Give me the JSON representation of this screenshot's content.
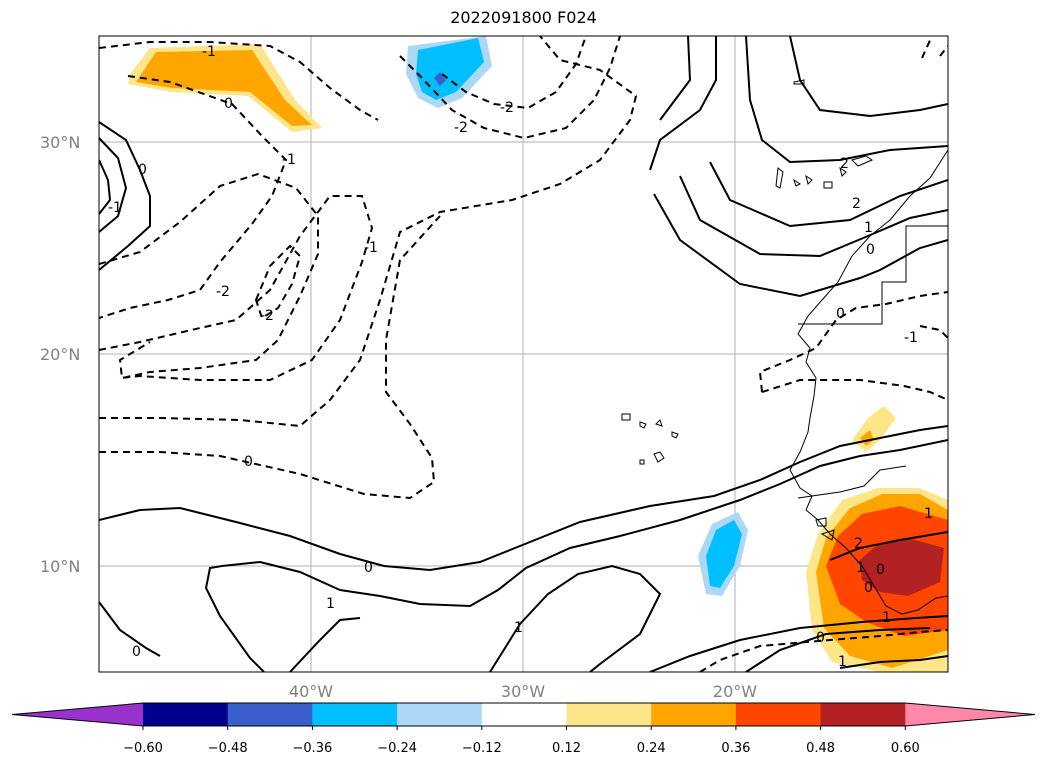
{
  "title": "2022091800 F024",
  "lat_labels": [
    "30°N",
    "20°N",
    "10°N"
  ],
  "lon_labels": [
    "40°W",
    "30°W",
    "20°W"
  ],
  "colorbar": {
    "ticks": [
      "−0.60",
      "−0.48",
      "−0.36",
      "−0.24",
      "−0.12",
      "0.12",
      "0.24",
      "0.36",
      "0.48",
      "0.60"
    ],
    "colors": [
      "#9932cc",
      "#00008b",
      "#3a5fcd",
      "#00bfff",
      "#add8f5",
      "#ffffff",
      "#fde68a",
      "#ffa500",
      "#ff4500",
      "#b22222",
      "#ff88aa"
    ]
  },
  "contour_labels": [
    "-1",
    "0",
    "-2",
    "-2",
    "-1",
    "0",
    "-1",
    "-2",
    "-2",
    "-1",
    "0",
    "0",
    "1",
    "1",
    "0",
    "-1",
    "2",
    "2",
    "1",
    "0",
    "0",
    "1",
    "2",
    "1",
    "0",
    "0",
    "1",
    "0",
    "1"
  ]
}
